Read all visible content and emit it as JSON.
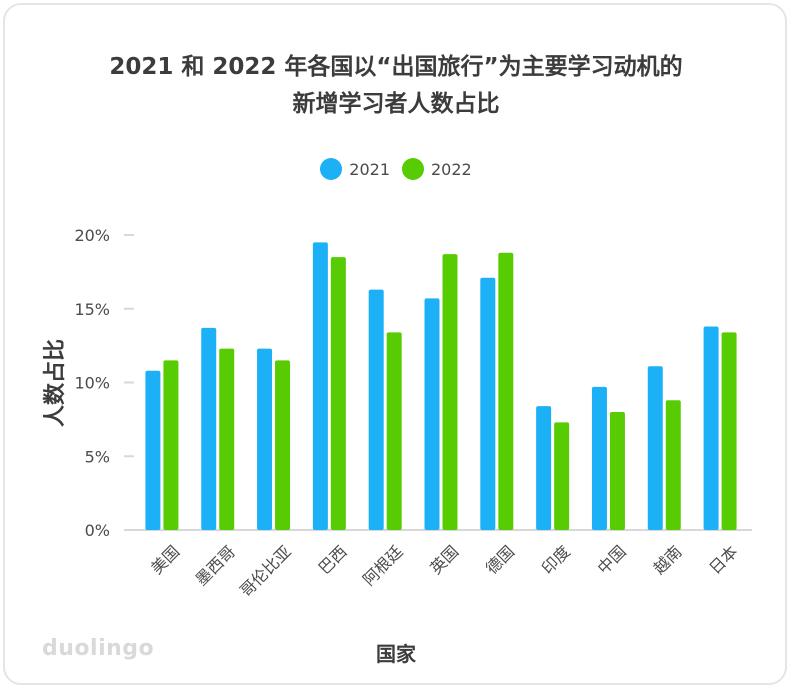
{
  "chart_data": {
    "type": "bar",
    "title_line1": "2021 和 2022 年各国以“出国旅行”为主要学习动机的",
    "title_line2": "新增学习者人数占比",
    "xlabel": "国家",
    "ylabel": "人数占比",
    "categories": [
      "美国",
      "墨西哥",
      "哥伦比亚",
      "巴西",
      "阿根廷",
      "英国",
      "德国",
      "印度",
      "中国",
      "越南",
      "日本"
    ],
    "series": [
      {
        "name": "2021",
        "color": "#1cb0f6",
        "values": [
          10.8,
          13.7,
          12.3,
          19.5,
          16.3,
          15.7,
          17.1,
          8.4,
          9.7,
          11.1,
          13.8
        ]
      },
      {
        "name": "2022",
        "color": "#58cc02",
        "values": [
          11.5,
          12.3,
          11.5,
          18.5,
          13.4,
          18.7,
          18.8,
          7.3,
          8.0,
          8.8,
          13.4
        ]
      }
    ],
    "ylim": [
      0,
      20
    ],
    "yticks": [
      "0%",
      "5%",
      "10%",
      "15%",
      "20%"
    ],
    "ytick_values": [
      0,
      5,
      10,
      15,
      20
    ],
    "legend_position": "top-center",
    "grid": false
  },
  "brand": {
    "logo_text": "duolingo"
  }
}
